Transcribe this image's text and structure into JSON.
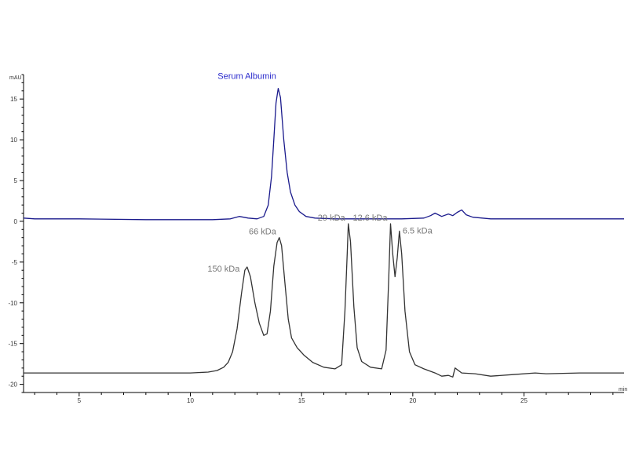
{
  "chart_data": {
    "type": "line",
    "xlabel": "min",
    "ylabel": "mAU",
    "xlim": [
      2.5,
      29.5
    ],
    "ylim": [
      -21,
      18
    ],
    "x_ticks": [
      "5",
      "10",
      "15",
      "20",
      "25"
    ],
    "y_ticks": [
      "15",
      "10",
      "5",
      "0",
      "-5",
      "-10",
      "-15",
      "-20"
    ],
    "grid": false,
    "legend": "none",
    "series": [
      {
        "color": "#1a1a8c",
        "points": [
          [
            2.5,
            0.4
          ],
          [
            3.0,
            0.3
          ],
          [
            5.0,
            0.3
          ],
          [
            8.0,
            0.2
          ],
          [
            11.0,
            0.2
          ],
          [
            11.8,
            0.3
          ],
          [
            12.2,
            0.6
          ],
          [
            12.6,
            0.4
          ],
          [
            13.0,
            0.3
          ],
          [
            13.3,
            0.6
          ],
          [
            13.5,
            2.0
          ],
          [
            13.65,
            5.5
          ],
          [
            13.75,
            10.0
          ],
          [
            13.85,
            14.5
          ],
          [
            13.95,
            16.3
          ],
          [
            14.05,
            15.2
          ],
          [
            14.2,
            10.0
          ],
          [
            14.35,
            6.0
          ],
          [
            14.5,
            3.6
          ],
          [
            14.7,
            2.0
          ],
          [
            14.9,
            1.2
          ],
          [
            15.2,
            0.6
          ],
          [
            15.6,
            0.4
          ],
          [
            16.5,
            0.3
          ],
          [
            18.0,
            0.3
          ],
          [
            19.5,
            0.3
          ],
          [
            20.5,
            0.4
          ],
          [
            20.8,
            0.7
          ],
          [
            21.0,
            1.0
          ],
          [
            21.3,
            0.6
          ],
          [
            21.6,
            0.9
          ],
          [
            21.8,
            0.7
          ],
          [
            22.0,
            1.1
          ],
          [
            22.2,
            1.4
          ],
          [
            22.4,
            0.8
          ],
          [
            22.7,
            0.5
          ],
          [
            23.5,
            0.3
          ],
          [
            25.5,
            0.3
          ],
          [
            27.5,
            0.3
          ],
          [
            29.5,
            0.3
          ]
        ]
      },
      {
        "color": "#333333",
        "points": [
          [
            2.5,
            -18.6
          ],
          [
            5.0,
            -18.6
          ],
          [
            8.0,
            -18.6
          ],
          [
            10.0,
            -18.6
          ],
          [
            10.8,
            -18.5
          ],
          [
            11.2,
            -18.3
          ],
          [
            11.5,
            -17.9
          ],
          [
            11.7,
            -17.3
          ],
          [
            11.9,
            -16.0
          ],
          [
            12.1,
            -13.2
          ],
          [
            12.3,
            -8.8
          ],
          [
            12.45,
            -6.0
          ],
          [
            12.55,
            -5.6
          ],
          [
            12.7,
            -6.8
          ],
          [
            12.9,
            -10.0
          ],
          [
            13.1,
            -12.5
          ],
          [
            13.3,
            -14.0
          ],
          [
            13.45,
            -13.8
          ],
          [
            13.6,
            -11.0
          ],
          [
            13.75,
            -5.5
          ],
          [
            13.9,
            -2.6
          ],
          [
            14.0,
            -2.0
          ],
          [
            14.1,
            -3.0
          ],
          [
            14.25,
            -7.5
          ],
          [
            14.4,
            -12.0
          ],
          [
            14.55,
            -14.3
          ],
          [
            14.8,
            -15.5
          ],
          [
            15.1,
            -16.4
          ],
          [
            15.5,
            -17.3
          ],
          [
            16.0,
            -17.9
          ],
          [
            16.5,
            -18.1
          ],
          [
            16.8,
            -17.6
          ],
          [
            16.95,
            -11.0
          ],
          [
            17.05,
            -4.0
          ],
          [
            17.1,
            -0.3
          ],
          [
            17.2,
            -2.5
          ],
          [
            17.35,
            -10.5
          ],
          [
            17.5,
            -15.5
          ],
          [
            17.7,
            -17.2
          ],
          [
            18.1,
            -17.9
          ],
          [
            18.6,
            -18.1
          ],
          [
            18.8,
            -15.8
          ],
          [
            18.92,
            -7.0
          ],
          [
            19.0,
            -0.3
          ],
          [
            19.1,
            -4.0
          ],
          [
            19.2,
            -6.8
          ],
          [
            19.3,
            -4.5
          ],
          [
            19.4,
            -1.2
          ],
          [
            19.5,
            -4.0
          ],
          [
            19.65,
            -11.0
          ],
          [
            19.85,
            -16.0
          ],
          [
            20.1,
            -17.6
          ],
          [
            20.5,
            -18.1
          ],
          [
            21.0,
            -18.6
          ],
          [
            21.3,
            -19.0
          ],
          [
            21.6,
            -18.9
          ],
          [
            21.8,
            -19.1
          ],
          [
            21.9,
            -18.0
          ],
          [
            22.2,
            -18.6
          ],
          [
            22.8,
            -18.7
          ],
          [
            23.5,
            -19.0
          ],
          [
            24.5,
            -18.8
          ],
          [
            25.5,
            -18.6
          ],
          [
            26.0,
            -18.7
          ],
          [
            27.5,
            -18.6
          ],
          [
            29.5,
            -18.6
          ]
        ]
      }
    ],
    "annotations": [
      {
        "text": "Serum Albumin",
        "x": 14.0,
        "y": 16.3,
        "color": "#2a2acc"
      },
      {
        "text": "150 kDa",
        "x": 12.5,
        "y": -5.6,
        "color": "#777777"
      },
      {
        "text": "66 kDa",
        "x": 14.0,
        "y": -2.0,
        "color": "#777777"
      },
      {
        "text": "29 kDa",
        "x": 17.1,
        "y": -0.3,
        "color": "#777777"
      },
      {
        "text": "12.6 kDa",
        "x": 19.0,
        "y": -0.3,
        "color": "#777777"
      },
      {
        "text": "6.5 kDa",
        "x": 19.4,
        "y": -1.2,
        "color": "#777777"
      }
    ]
  }
}
